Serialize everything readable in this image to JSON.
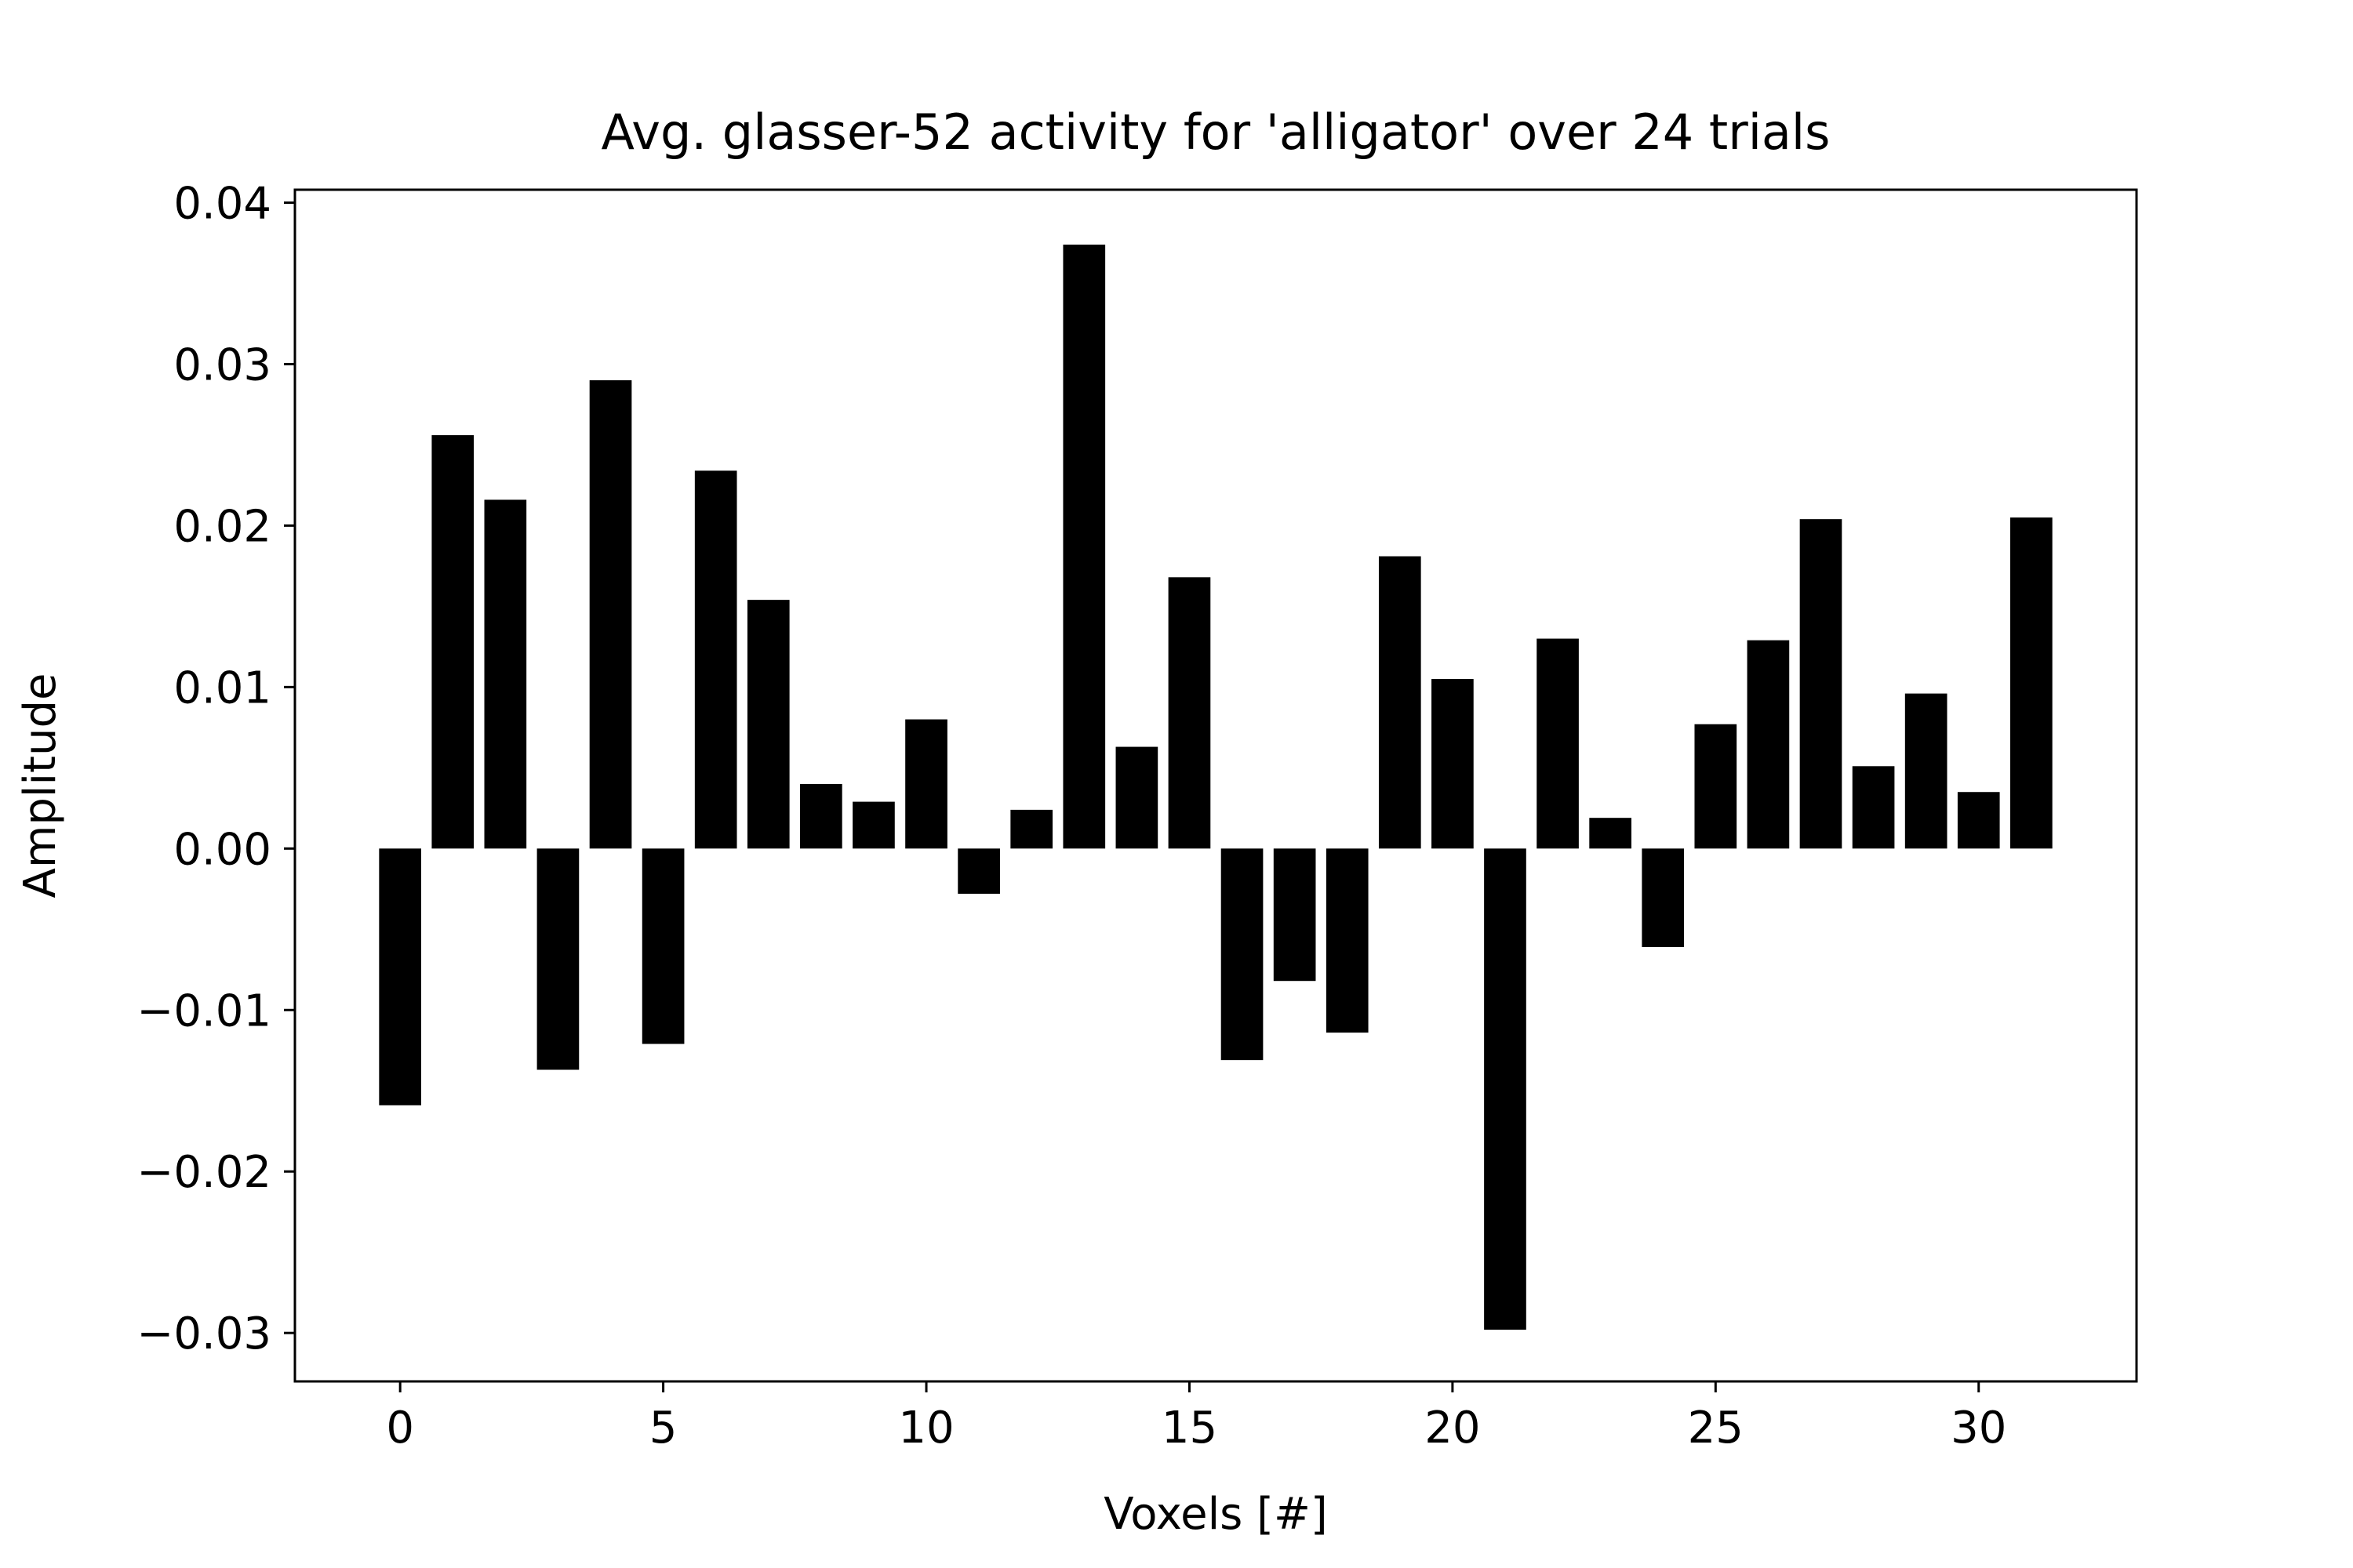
{
  "chart_data": {
    "type": "bar",
    "title": "Avg. glasser-52 activity for 'alligator' over 24 trials",
    "xlabel": "Voxels [#]",
    "ylabel": "Amplitude",
    "x": [
      0,
      1,
      2,
      3,
      4,
      5,
      6,
      7,
      8,
      9,
      10,
      11,
      12,
      13,
      14,
      15,
      16,
      17,
      18,
      19,
      20,
      21,
      22,
      23,
      24,
      25,
      26,
      27,
      28,
      29,
      30,
      31
    ],
    "values": [
      -0.0159,
      0.0256,
      0.0216,
      -0.0137,
      0.029,
      -0.0121,
      0.0234,
      0.0154,
      0.004,
      0.0029,
      0.008,
      -0.0028,
      0.0024,
      0.0374,
      0.0063,
      0.0168,
      -0.0131,
      -0.0082,
      -0.0114,
      0.0181,
      0.0105,
      -0.0298,
      0.013,
      0.0019,
      -0.0061,
      0.0077,
      0.0129,
      0.0204,
      0.0051,
      0.0096,
      0.0035,
      0.0205
    ],
    "xlim": [
      -2,
      33
    ],
    "ylim": [
      -0.033,
      0.0408
    ],
    "xticks": [
      0,
      5,
      10,
      15,
      20,
      25,
      30
    ],
    "xtick_labels": [
      "0",
      "5",
      "10",
      "15",
      "20",
      "25",
      "30"
    ],
    "yticks": [
      -0.03,
      -0.02,
      -0.01,
      0.0,
      0.01,
      0.02,
      0.03,
      0.04
    ],
    "ytick_labels": [
      "−0.03",
      "−0.02",
      "−0.01",
      "0.00",
      "0.01",
      "0.02",
      "0.03",
      "0.04"
    ],
    "bar_color": "#000000",
    "grid": false,
    "legend": "none"
  }
}
